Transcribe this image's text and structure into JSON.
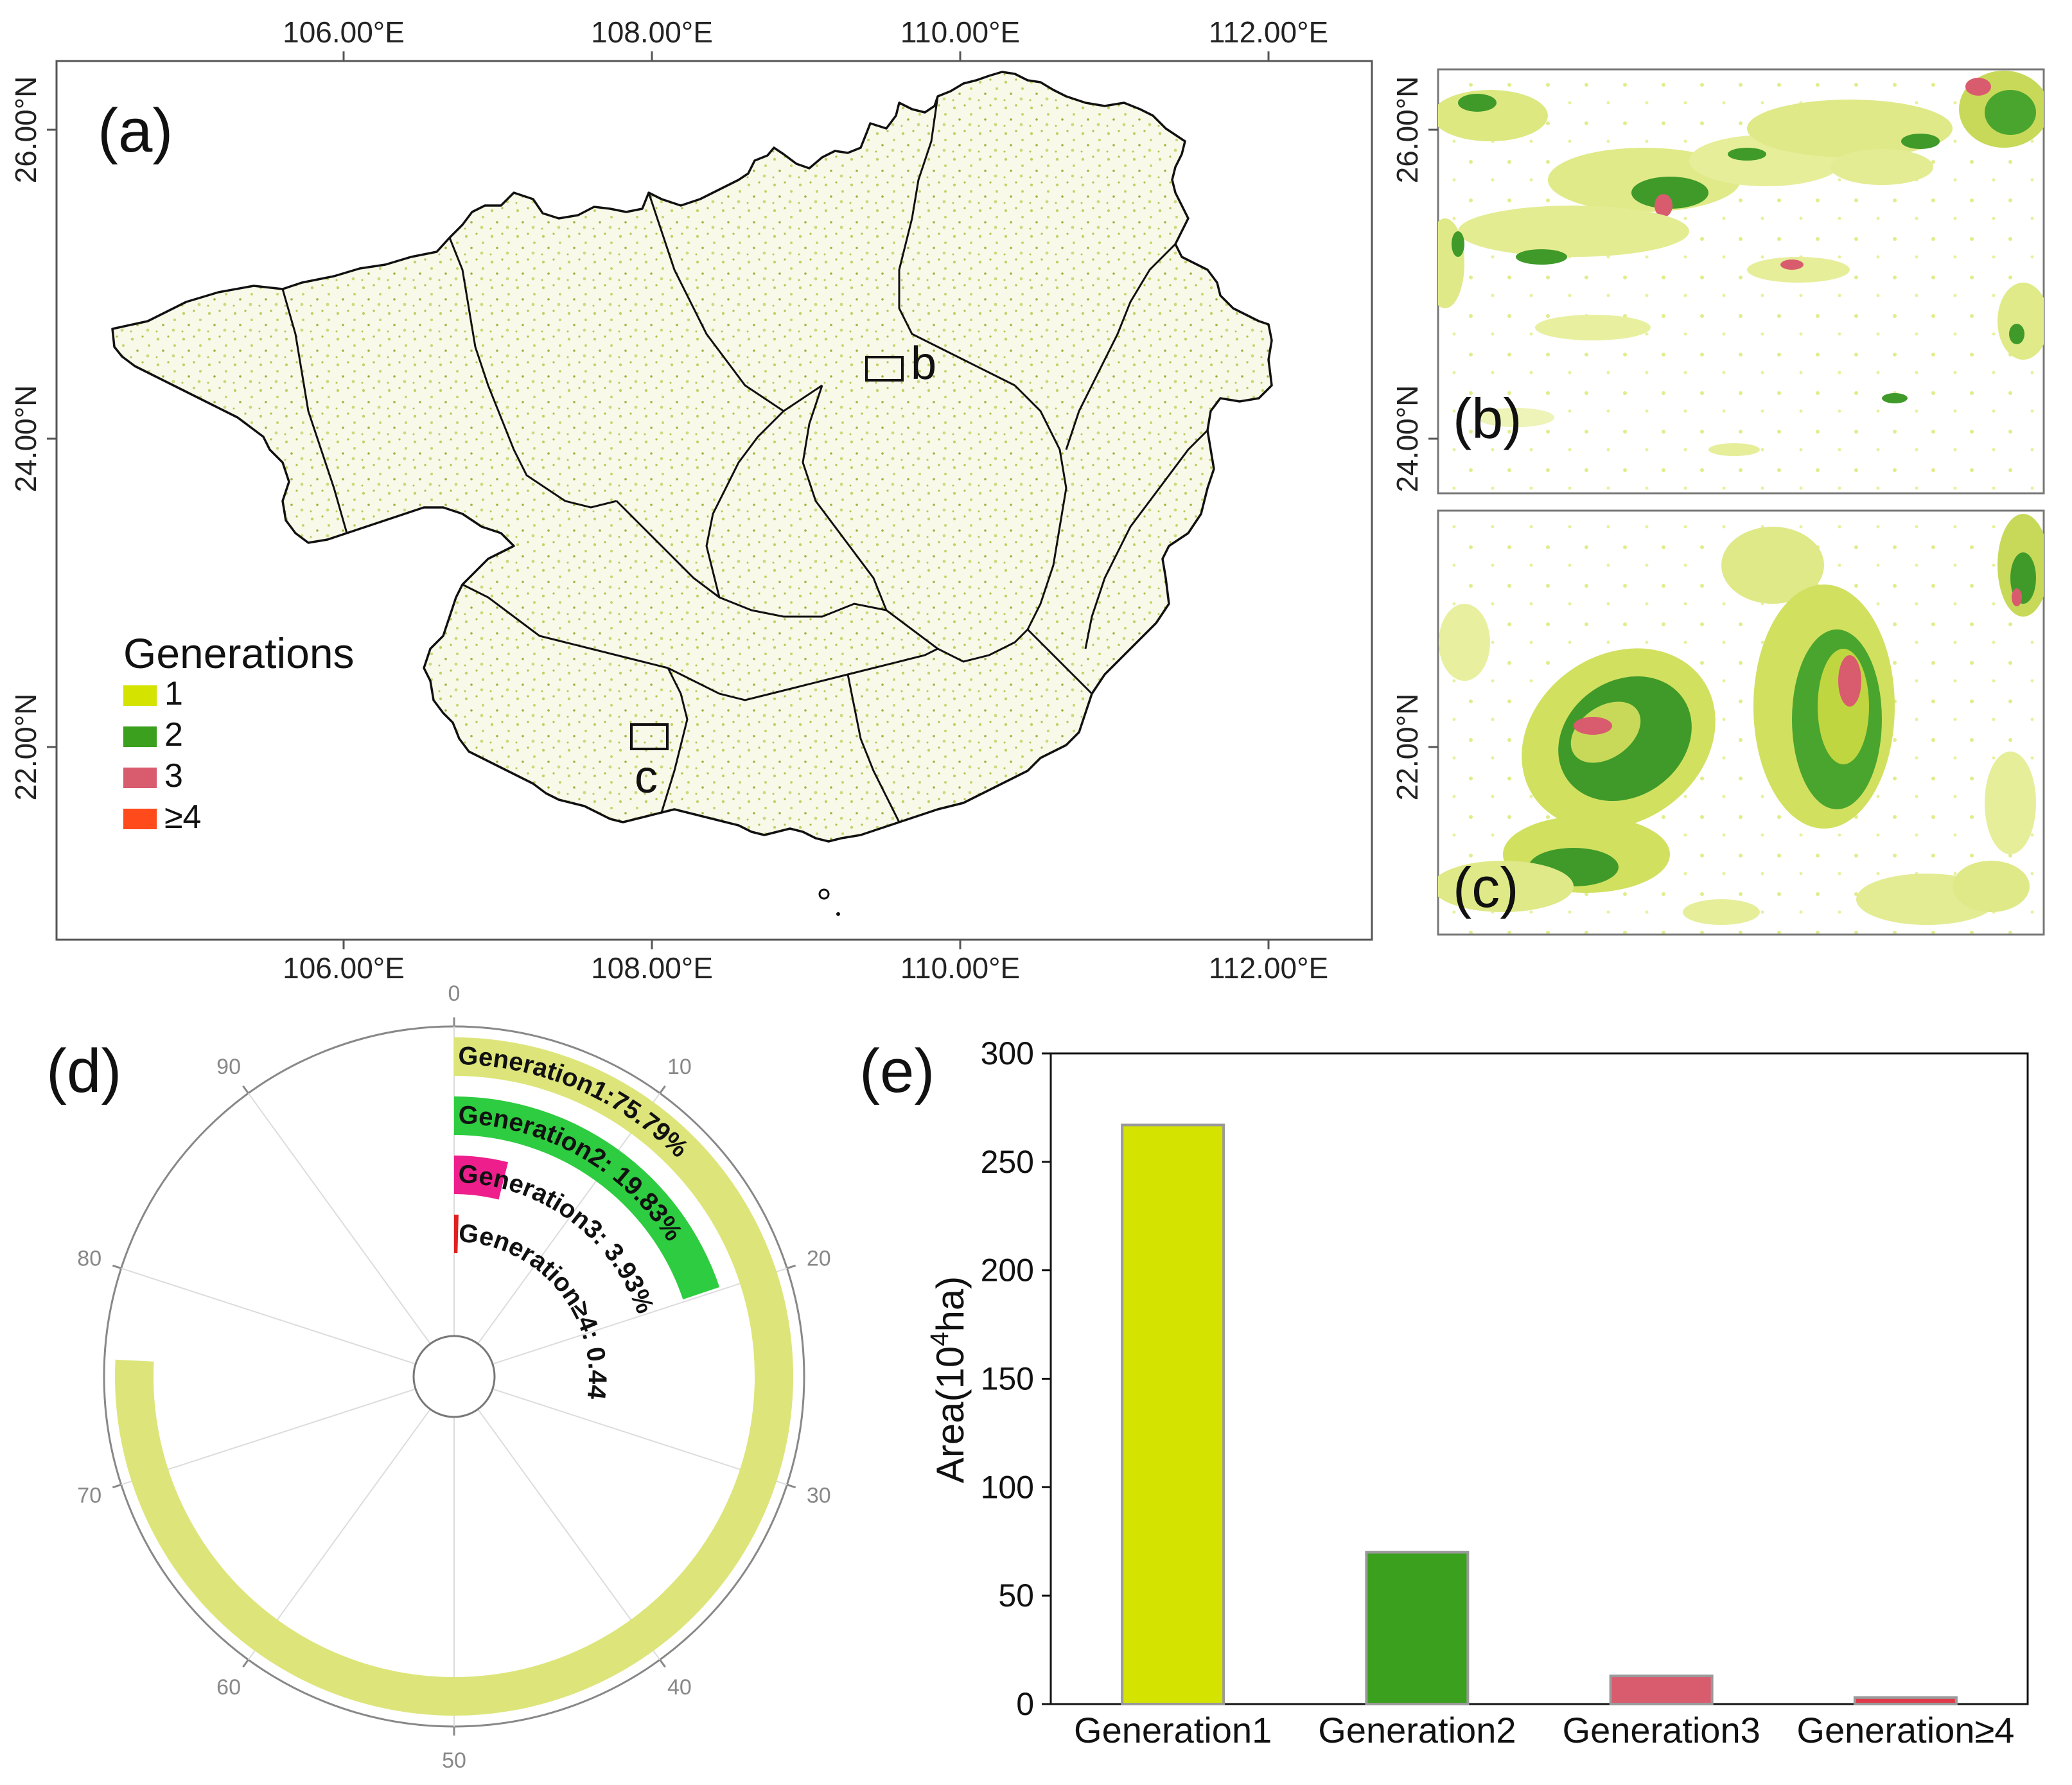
{
  "panel_a": {
    "label": "(a)",
    "lon_ticks": [
      "106.00°E",
      "108.00°E",
      "110.00°E",
      "112.00°E"
    ],
    "lat_ticks": [
      "26.00°N",
      "24.00°N",
      "22.00°N"
    ],
    "inset_b_label": "b",
    "inset_c_label": "c",
    "legend": {
      "title": "Generations",
      "items": [
        {
          "label": "1",
          "color": "#d4e300"
        },
        {
          "label": "2",
          "color": "#3aa01e"
        },
        {
          "label": "3",
          "color": "#d95b6e"
        },
        {
          "label": "≥4",
          "color": "#ff4a1c"
        }
      ]
    }
  },
  "panel_b": {
    "label": "(b)",
    "lat_ticks": [
      "26.00°N",
      "24.00°N"
    ]
  },
  "panel_c": {
    "label": "(c)",
    "lat_ticks": [
      "22.00°N"
    ]
  },
  "panel_d": {
    "label": "(d)",
    "ticks": [
      "0",
      "10",
      "20",
      "30",
      "40",
      "50",
      "60",
      "70",
      "80",
      "90"
    ],
    "bar_labels": [
      "Generation1:75.79%",
      "Generation2:  19.83%",
      "Generation3:  3.93%",
      "Generation≥4:  0.44"
    ]
  },
  "panel_e": {
    "label": "(e)",
    "ylabel_main": "Area(10",
    "ylabel_sup": "4",
    "ylabel_end": "ha)",
    "yticks": [
      "0",
      "50",
      "100",
      "150",
      "200",
      "250",
      "300"
    ]
  },
  "chart_data": [
    {
      "type": "radial-bar",
      "axis_max": 100,
      "categories": [
        "Generation1",
        "Generation2",
        "Generation3",
        "Generation≥4"
      ],
      "values": [
        75.79,
        19.83,
        3.93,
        0.44
      ],
      "colors": [
        "#dde57a",
        "#2ecc40",
        "#ee1f8c",
        "#e02020"
      ]
    },
    {
      "type": "bar",
      "categories": [
        "Generation1",
        "Generation2",
        "Generation3",
        "Generation≥4"
      ],
      "values": [
        267,
        70,
        13,
        3
      ],
      "colors": [
        "#d4e300",
        "#3aa01e",
        "#d95b6e",
        "#e03a4a"
      ],
      "ylim": [
        0,
        300
      ],
      "ylabel": "Area(10^4ha)"
    }
  ]
}
